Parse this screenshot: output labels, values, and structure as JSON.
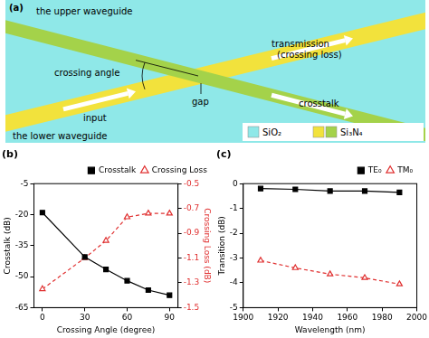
{
  "diagram": {
    "panel_label": "(a)",
    "upper_waveguide": "the upper waveguide",
    "lower_waveguide": "the lower waveguide",
    "input": "input",
    "transmission": [
      "transmission",
      "(crossing loss)"
    ],
    "crosstalk": "crosstalk",
    "crossing_angle": "crossing angle",
    "gap": "gap",
    "legend": [
      {
        "label": "SiO₂",
        "colors": [
          "#8fe8e8"
        ]
      },
      {
        "label": "Si₃N₄",
        "colors": [
          "#f2e23c",
          "#a4d24a"
        ]
      }
    ]
  },
  "chart_data": [
    {
      "type": "line",
      "title": "(b)",
      "x_label": "Crossing Angle (degree)",
      "y_label": "Crosstalk (dB)",
      "y2_label": "Crossing Loss (dB)",
      "x": [
        0,
        30,
        45,
        60,
        75,
        90
      ],
      "series": [
        {
          "name": "Crosstalk",
          "color": "#000000",
          "marker": "square",
          "line_style": "solid",
          "values": [
            -19,
            -40.5,
            -46.5,
            -52,
            -56.5,
            -59
          ]
        },
        {
          "name": "Crossing Loss",
          "color": "#e03030",
          "marker": "triangle",
          "line_style": "dashed",
          "axis": "y2",
          "values": [
            -1.35,
            -1.1,
            -0.96,
            -0.77,
            -0.74,
            -0.74
          ]
        }
      ],
      "xlim": [
        -6,
        96
      ],
      "xticks": [
        0,
        30,
        60,
        90
      ],
      "ylim": [
        -65,
        -5
      ],
      "yticks": [
        -65,
        -50,
        -35,
        -20,
        -5
      ],
      "y2lim": [
        -1.5,
        -0.5
      ],
      "y2ticks": [
        -1.5,
        -1.3,
        -1.1,
        -0.9,
        -0.7,
        -0.5
      ],
      "grid": false,
      "legend": "upper right"
    },
    {
      "type": "line",
      "title": "(c)",
      "x_label": "Wavelength (nm)",
      "y_label": "Transition (dB)",
      "x": [
        1910,
        1930,
        1950,
        1970,
        1990
      ],
      "series": [
        {
          "name": "TE₀",
          "color": "#000000",
          "marker": "square",
          "line_style": "solid",
          "values": [
            -0.2,
            -0.23,
            -0.3,
            -0.3,
            -0.35
          ]
        },
        {
          "name": "TM₀",
          "color": "#e03030",
          "marker": "triangle",
          "line_style": "dashed",
          "values": [
            -3.1,
            -3.4,
            -3.65,
            -3.8,
            -4.05
          ]
        }
      ],
      "xlim": [
        1900,
        2000
      ],
      "xticks": [
        1900,
        1920,
        1940,
        1960,
        1980,
        2000
      ],
      "ylim": [
        -5,
        0
      ],
      "yticks": [
        -5,
        -4,
        -3,
        -2,
        -1,
        0
      ],
      "grid": false,
      "legend": "upper right"
    }
  ]
}
